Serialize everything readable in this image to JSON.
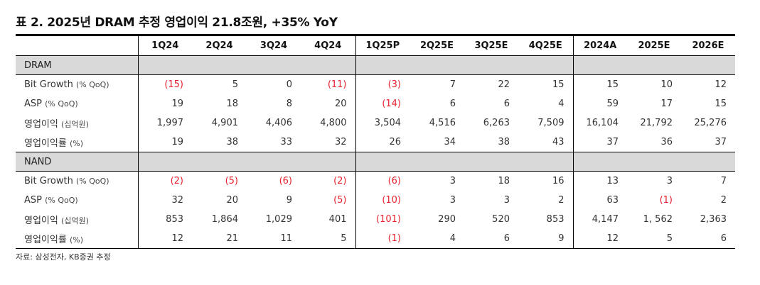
{
  "title": "표 2. 2025년 DRAM 추정 영업이익 21.8조원, +35% YoY",
  "columns": [
    "1Q24",
    "2Q24",
    "3Q24",
    "4Q24",
    "1Q25P",
    "2Q25E",
    "3Q25E",
    "4Q25E",
    "2024A",
    "2025E",
    "2026E"
  ],
  "colors": {
    "negative": "#e8222e",
    "section_bg": "#d9d9d9",
    "border": "#000000"
  },
  "sections": [
    {
      "name": "DRAM",
      "rows": [
        {
          "label": "Bit Growth",
          "unit": "(% QoQ)",
          "values": [
            "(15)",
            "5",
            "0",
            "(11)",
            "(3)",
            "7",
            "22",
            "15",
            "15",
            "10",
            "12"
          ],
          "negative": [
            true,
            false,
            false,
            true,
            true,
            false,
            false,
            false,
            false,
            false,
            false
          ]
        },
        {
          "label": "ASP",
          "unit": "(% QoQ)",
          "values": [
            "19",
            "18",
            "8",
            "20",
            "(14)",
            "6",
            "6",
            "4",
            "59",
            "17",
            "15"
          ],
          "negative": [
            false,
            false,
            false,
            false,
            true,
            false,
            false,
            false,
            false,
            false,
            false
          ]
        },
        {
          "label": "영업이익",
          "unit": "(십억원)",
          "values": [
            "1,997",
            "4,901",
            "4,406",
            "4,800",
            "3,504",
            "4,516",
            "6,263",
            "7,509",
            "16,104",
            "21,792",
            "25,276"
          ],
          "negative": [
            false,
            false,
            false,
            false,
            false,
            false,
            false,
            false,
            false,
            false,
            false
          ]
        },
        {
          "label": "영업이익률",
          "unit": "(%)",
          "values": [
            "19",
            "38",
            "33",
            "32",
            "26",
            "34",
            "38",
            "43",
            "37",
            "36",
            "37"
          ],
          "negative": [
            false,
            false,
            false,
            false,
            false,
            false,
            false,
            false,
            false,
            false,
            false
          ]
        }
      ]
    },
    {
      "name": "NAND",
      "rows": [
        {
          "label": "Bit Growth",
          "unit": "(% QoQ)",
          "values": [
            "(2)",
            "(5)",
            "(6)",
            "(2)",
            "(6)",
            "3",
            "18",
            "16",
            "13",
            "3",
            "7"
          ],
          "negative": [
            true,
            true,
            true,
            true,
            true,
            false,
            false,
            false,
            false,
            false,
            false
          ]
        },
        {
          "label": "ASP",
          "unit": "(% QoQ)",
          "values": [
            "32",
            "20",
            "9",
            "(5)",
            "(10)",
            "3",
            "3",
            "2",
            "63",
            "(1)",
            "2"
          ],
          "negative": [
            false,
            false,
            false,
            true,
            true,
            false,
            false,
            false,
            false,
            true,
            false
          ]
        },
        {
          "label": "영업이익",
          "unit": "(십억원)",
          "values": [
            "853",
            "1,864",
            "1,029",
            "401",
            "(101)",
            "290",
            "520",
            "853",
            "4,147",
            "1, 562",
            "2,363"
          ],
          "negative": [
            false,
            false,
            false,
            false,
            true,
            false,
            false,
            false,
            false,
            false,
            false
          ]
        },
        {
          "label": "영업이익률",
          "unit": "(%)",
          "values": [
            "12",
            "21",
            "11",
            "5",
            "(1)",
            "4",
            "6",
            "9",
            "12",
            "5",
            "6"
          ],
          "negative": [
            false,
            false,
            false,
            false,
            true,
            false,
            false,
            false,
            false,
            false,
            false
          ]
        }
      ]
    }
  ],
  "footer": "자료: 삼성전자, KB증권 추정"
}
